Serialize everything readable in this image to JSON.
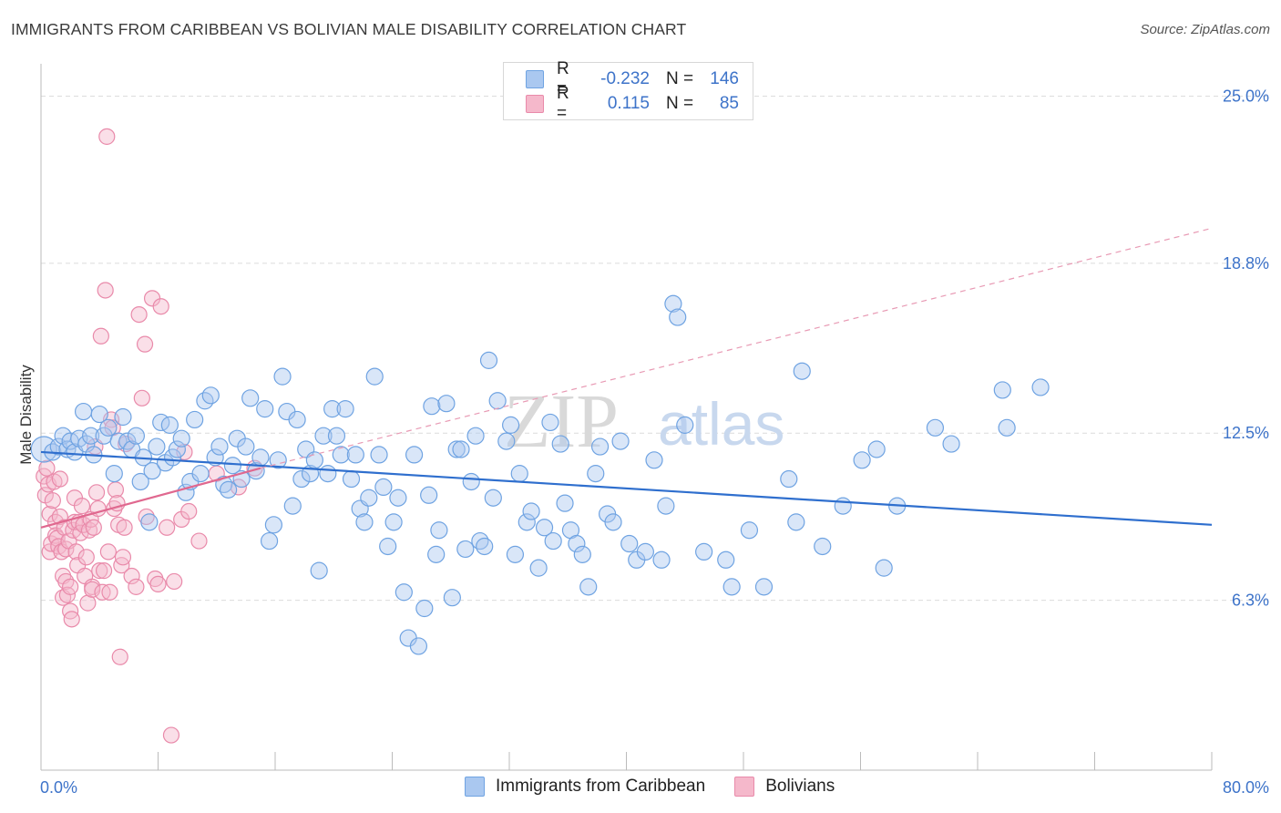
{
  "title": "IMMIGRANTS FROM CARIBBEAN VS BOLIVIAN MALE DISABILITY CORRELATION CHART",
  "source": "Source: ZipAtlas.com",
  "watermark": {
    "zip": "ZIP",
    "atlas": "atlas"
  },
  "legend": {
    "rows": [
      {
        "r_label": "R =",
        "r_value": "-0.232",
        "n_label": "N =",
        "n_value": "146",
        "color": "#aac8f0"
      },
      {
        "r_label": "R =",
        "r_value": "0.115",
        "n_label": "N =",
        "n_value": "85",
        "color": "#f5b8cb"
      }
    ]
  },
  "bottom_legend": [
    {
      "label": "Immigrants from Caribbean",
      "color": "#aac8f0"
    },
    {
      "label": "Bolivians",
      "color": "#f5b8cb"
    }
  ],
  "chart_data": {
    "type": "scatter",
    "ylabel": "Male Disability",
    "xlim": [
      0,
      80
    ],
    "ylim": [
      0,
      26.2
    ],
    "x_tick_labels": {
      "left": "0.0%",
      "right": "80.0%"
    },
    "y_ticks": [
      {
        "value": 25.0,
        "label": "25.0%"
      },
      {
        "value": 18.8,
        "label": "18.8%"
      },
      {
        "value": 12.5,
        "label": "12.5%"
      },
      {
        "value": 6.3,
        "label": "6.3%"
      }
    ],
    "series": [
      {
        "name": "Immigrants from Caribbean",
        "color": "#6fa3e2",
        "fill": "#aac8f0",
        "trend": {
          "x0": 0,
          "y0": 11.8,
          "x1": 80,
          "y1": 9.1,
          "style": "solid",
          "color": "#2f6fce"
        },
        "points": [
          [
            0.2,
            11.9
          ],
          [
            0.8,
            11.8
          ],
          [
            1.2,
            12.0
          ],
          [
            1.5,
            12.4
          ],
          [
            1.8,
            11.9
          ],
          [
            2.0,
            12.2
          ],
          [
            2.3,
            11.8
          ],
          [
            2.6,
            12.3
          ],
          [
            2.9,
            13.3
          ],
          [
            3.1,
            12.1
          ],
          [
            3.4,
            12.4
          ],
          [
            3.6,
            11.7
          ],
          [
            4.0,
            13.2
          ],
          [
            4.3,
            12.4
          ],
          [
            4.6,
            12.7
          ],
          [
            5.0,
            11.0
          ],
          [
            5.3,
            12.2
          ],
          [
            5.6,
            13.1
          ],
          [
            5.9,
            12.2
          ],
          [
            6.2,
            11.9
          ],
          [
            6.5,
            12.4
          ],
          [
            6.8,
            10.7
          ],
          [
            7.0,
            11.6
          ],
          [
            7.4,
            9.2
          ],
          [
            7.6,
            11.1
          ],
          [
            7.9,
            12.0
          ],
          [
            8.2,
            12.9
          ],
          [
            8.5,
            11.4
          ],
          [
            8.8,
            12.8
          ],
          [
            9.0,
            11.6
          ],
          [
            9.3,
            11.9
          ],
          [
            9.6,
            12.3
          ],
          [
            9.9,
            10.3
          ],
          [
            10.2,
            10.7
          ],
          [
            10.5,
            13.0
          ],
          [
            10.9,
            11.0
          ],
          [
            11.2,
            13.7
          ],
          [
            11.6,
            13.9
          ],
          [
            11.9,
            11.6
          ],
          [
            12.2,
            12.0
          ],
          [
            12.5,
            10.6
          ],
          [
            12.8,
            10.4
          ],
          [
            13.1,
            11.3
          ],
          [
            13.4,
            12.3
          ],
          [
            13.7,
            10.8
          ],
          [
            14.0,
            12.0
          ],
          [
            14.3,
            13.8
          ],
          [
            14.7,
            11.1
          ],
          [
            15.0,
            11.6
          ],
          [
            15.3,
            13.4
          ],
          [
            15.6,
            8.5
          ],
          [
            15.9,
            9.1
          ],
          [
            16.2,
            11.5
          ],
          [
            16.5,
            14.6
          ],
          [
            16.8,
            13.3
          ],
          [
            17.2,
            9.8
          ],
          [
            17.5,
            13.0
          ],
          [
            17.8,
            10.8
          ],
          [
            18.1,
            11.9
          ],
          [
            18.4,
            11.0
          ],
          [
            18.7,
            11.5
          ],
          [
            19.0,
            7.4
          ],
          [
            19.3,
            12.4
          ],
          [
            19.6,
            11.0
          ],
          [
            19.9,
            13.4
          ],
          [
            20.2,
            12.4
          ],
          [
            20.5,
            11.7
          ],
          [
            20.8,
            13.4
          ],
          [
            21.2,
            10.8
          ],
          [
            21.5,
            11.7
          ],
          [
            21.8,
            9.7
          ],
          [
            22.1,
            9.2
          ],
          [
            22.4,
            10.1
          ],
          [
            22.8,
            14.6
          ],
          [
            23.1,
            11.7
          ],
          [
            23.4,
            10.5
          ],
          [
            23.7,
            8.3
          ],
          [
            24.1,
            9.2
          ],
          [
            24.4,
            10.1
          ],
          [
            24.8,
            6.6
          ],
          [
            25.1,
            4.9
          ],
          [
            25.5,
            11.7
          ],
          [
            25.8,
            4.6
          ],
          [
            26.2,
            6.0
          ],
          [
            26.5,
            10.2
          ],
          [
            26.7,
            13.5
          ],
          [
            27.0,
            8.0
          ],
          [
            27.2,
            8.9
          ],
          [
            27.7,
            13.6
          ],
          [
            28.1,
            6.4
          ],
          [
            28.4,
            11.9
          ],
          [
            28.7,
            11.9
          ],
          [
            29.0,
            8.2
          ],
          [
            29.4,
            10.7
          ],
          [
            29.7,
            12.4
          ],
          [
            30.0,
            8.5
          ],
          [
            30.3,
            8.3
          ],
          [
            30.6,
            15.2
          ],
          [
            30.9,
            10.1
          ],
          [
            31.2,
            13.7
          ],
          [
            31.8,
            12.2
          ],
          [
            32.1,
            12.8
          ],
          [
            32.4,
            8.0
          ],
          [
            32.7,
            11.0
          ],
          [
            33.2,
            9.2
          ],
          [
            33.5,
            9.6
          ],
          [
            34.0,
            7.5
          ],
          [
            34.4,
            9.0
          ],
          [
            34.8,
            12.9
          ],
          [
            35.0,
            8.5
          ],
          [
            35.5,
            12.1
          ],
          [
            35.8,
            9.9
          ],
          [
            36.2,
            8.9
          ],
          [
            36.6,
            8.4
          ],
          [
            37.0,
            8.0
          ],
          [
            37.4,
            6.8
          ],
          [
            37.9,
            11.0
          ],
          [
            38.2,
            12.0
          ],
          [
            38.7,
            9.5
          ],
          [
            39.1,
            9.2
          ],
          [
            39.6,
            12.2
          ],
          [
            40.2,
            8.4
          ],
          [
            40.7,
            7.8
          ],
          [
            41.3,
            8.1
          ],
          [
            41.9,
            11.5
          ],
          [
            42.4,
            7.8
          ],
          [
            42.7,
            9.8
          ],
          [
            43.2,
            17.3
          ],
          [
            43.5,
            16.8
          ],
          [
            44.0,
            12.8
          ],
          [
            45.3,
            8.1
          ],
          [
            46.8,
            7.8
          ],
          [
            47.2,
            6.8
          ],
          [
            48.4,
            8.9
          ],
          [
            49.4,
            6.8
          ],
          [
            51.1,
            10.8
          ],
          [
            51.6,
            9.2
          ],
          [
            52.0,
            14.8
          ],
          [
            53.4,
            8.3
          ],
          [
            54.8,
            9.8
          ],
          [
            56.1,
            11.5
          ],
          [
            57.1,
            11.9
          ],
          [
            57.6,
            7.5
          ],
          [
            58.5,
            9.8
          ],
          [
            61.1,
            12.7
          ],
          [
            62.2,
            12.1
          ],
          [
            65.7,
            14.1
          ],
          [
            66.0,
            12.7
          ],
          [
            68.3,
            14.2
          ]
        ]
      },
      {
        "name": "Bolivians",
        "color": "#e98aaa",
        "fill": "#f5b8cb",
        "trend_solid": {
          "x0": 0,
          "y0": 9.0,
          "x1": 15.0,
          "y1": 11.2,
          "color": "#e0688f"
        },
        "trend_dashed": {
          "x0": 15.0,
          "y0": 11.2,
          "x1": 80,
          "y1": 20.1,
          "color": "#e89ab4"
        },
        "points": [
          [
            0.2,
            10.9
          ],
          [
            0.3,
            10.2
          ],
          [
            0.4,
            11.2
          ],
          [
            0.5,
            10.6
          ],
          [
            0.6,
            9.5
          ],
          [
            0.6,
            8.1
          ],
          [
            0.7,
            8.4
          ],
          [
            0.8,
            10.0
          ],
          [
            0.9,
            10.7
          ],
          [
            1.0,
            9.2
          ],
          [
            1.0,
            8.7
          ],
          [
            1.1,
            8.6
          ],
          [
            1.2,
            8.3
          ],
          [
            1.3,
            10.8
          ],
          [
            1.3,
            9.4
          ],
          [
            1.4,
            8.1
          ],
          [
            1.5,
            7.2
          ],
          [
            1.5,
            6.4
          ],
          [
            1.6,
            9.0
          ],
          [
            1.7,
            8.2
          ],
          [
            1.7,
            7.0
          ],
          [
            1.8,
            6.5
          ],
          [
            1.9,
            8.5
          ],
          [
            2.0,
            6.8
          ],
          [
            2.0,
            5.9
          ],
          [
            2.1,
            5.6
          ],
          [
            2.2,
            8.9
          ],
          [
            2.3,
            9.2
          ],
          [
            2.3,
            10.1
          ],
          [
            2.4,
            8.1
          ],
          [
            2.5,
            7.6
          ],
          [
            2.6,
            9.2
          ],
          [
            2.7,
            8.8
          ],
          [
            2.8,
            9.8
          ],
          [
            2.9,
            9.1
          ],
          [
            3.0,
            7.2
          ],
          [
            3.1,
            7.9
          ],
          [
            3.2,
            6.2
          ],
          [
            3.3,
            8.9
          ],
          [
            3.4,
            9.3
          ],
          [
            3.5,
            6.8
          ],
          [
            3.5,
            6.7
          ],
          [
            3.6,
            9.0
          ],
          [
            3.7,
            12.0
          ],
          [
            3.8,
            10.3
          ],
          [
            3.9,
            9.7
          ],
          [
            4.0,
            7.4
          ],
          [
            4.1,
            16.1
          ],
          [
            4.2,
            6.6
          ],
          [
            4.3,
            7.4
          ],
          [
            4.4,
            17.8
          ],
          [
            4.5,
            23.5
          ],
          [
            4.6,
            8.1
          ],
          [
            4.7,
            6.6
          ],
          [
            4.8,
            13.0
          ],
          [
            4.9,
            12.7
          ],
          [
            5.0,
            9.7
          ],
          [
            5.1,
            10.4
          ],
          [
            5.2,
            9.9
          ],
          [
            5.3,
            9.1
          ],
          [
            5.4,
            4.2
          ],
          [
            5.5,
            7.6
          ],
          [
            5.6,
            7.9
          ],
          [
            5.7,
            9.0
          ],
          [
            5.8,
            12.1
          ],
          [
            6.2,
            7.2
          ],
          [
            6.5,
            6.8
          ],
          [
            6.7,
            16.9
          ],
          [
            6.9,
            13.8
          ],
          [
            7.1,
            15.8
          ],
          [
            7.2,
            9.4
          ],
          [
            7.6,
            17.5
          ],
          [
            7.8,
            7.1
          ],
          [
            8.0,
            6.9
          ],
          [
            8.2,
            17.2
          ],
          [
            8.6,
            9.0
          ],
          [
            8.9,
            1.3
          ],
          [
            9.1,
            7.0
          ],
          [
            9.6,
            9.3
          ],
          [
            9.8,
            11.8
          ],
          [
            10.1,
            9.6
          ],
          [
            10.8,
            8.5
          ],
          [
            12.0,
            11.0
          ],
          [
            13.5,
            10.5
          ],
          [
            14.6,
            11.2
          ]
        ]
      }
    ]
  }
}
